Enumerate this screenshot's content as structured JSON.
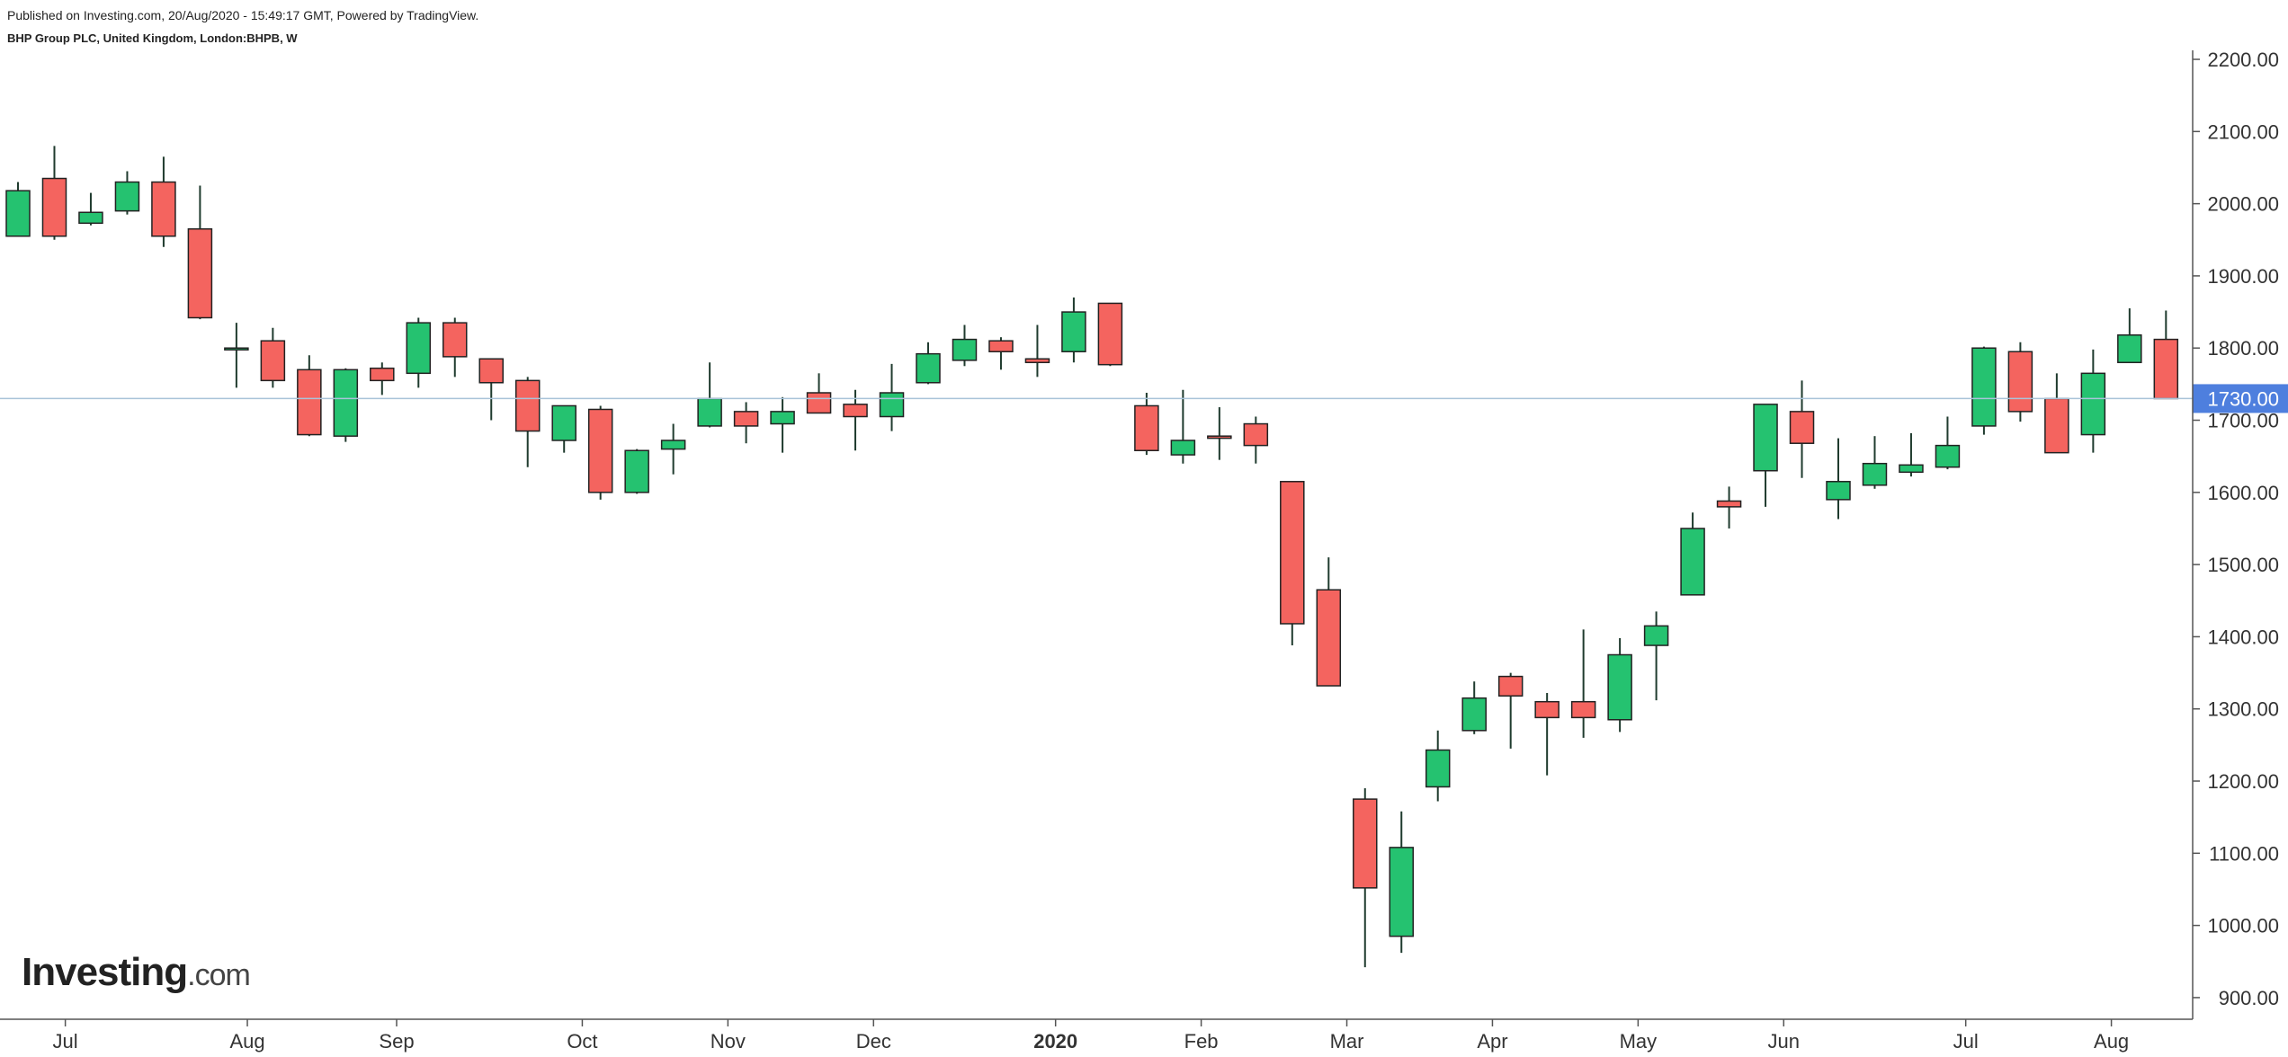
{
  "header": {
    "published": "Published on Investing.com, 20/Aug/2020 - 15:49:17 GMT, Powered by TradingView.",
    "instrument": "BHP Group PLC, United Kingdom, London:BHPB, W"
  },
  "logo": {
    "brand": "Investing",
    "tld": ".com"
  },
  "colors": {
    "up": "#25c270",
    "down": "#f4645f",
    "wick": "#1f3b2e",
    "border": "#222222",
    "price_line": "#a9c3d9",
    "price_label_bg": "#4e7fde",
    "axis": "#555555"
  },
  "chart_data": {
    "type": "candlestick",
    "timeframe": "W",
    "ylim": [
      870,
      2210
    ],
    "y_ticks": [
      "900.00",
      "1000.00",
      "1100.00",
      "1200.00",
      "1300.00",
      "1400.00",
      "1500.00",
      "1600.00",
      "1700.00",
      "1800.00",
      "1900.00",
      "2000.00",
      "2100.00",
      "2200.00"
    ],
    "y_tick_values": [
      900,
      1000,
      1100,
      1200,
      1300,
      1400,
      1500,
      1600,
      1700,
      1800,
      1900,
      2000,
      2100,
      2200
    ],
    "x_ticks": [
      {
        "label": "Jul",
        "index": 1.3
      },
      {
        "label": "Aug",
        "index": 6.3
      },
      {
        "label": "Sep",
        "index": 10.4
      },
      {
        "label": "Oct",
        "index": 15.5
      },
      {
        "label": "Nov",
        "index": 19.5
      },
      {
        "label": "Dec",
        "index": 23.5
      },
      {
        "label": "2020",
        "index": 28.5,
        "bold": true
      },
      {
        "label": "Feb",
        "index": 32.5
      },
      {
        "label": "Mar",
        "index": 36.5
      },
      {
        "label": "Apr",
        "index": 40.5
      },
      {
        "label": "May",
        "index": 44.5
      },
      {
        "label": "Jun",
        "index": 48.5
      },
      {
        "label": "Jul",
        "index": 53.5
      },
      {
        "label": "Aug",
        "index": 57.5
      }
    ],
    "current_price": 1730,
    "current_price_label": "1730.00",
    "candles": [
      {
        "o": 1955,
        "h": 2030,
        "l": 1955,
        "c": 2018
      },
      {
        "o": 2035,
        "h": 2080,
        "l": 1950,
        "c": 1955
      },
      {
        "o": 1973,
        "h": 2015,
        "l": 1970,
        "c": 1988
      },
      {
        "o": 1990,
        "h": 2045,
        "l": 1985,
        "c": 2030
      },
      {
        "o": 2030,
        "h": 2065,
        "l": 1940,
        "c": 1955
      },
      {
        "o": 1965,
        "h": 2025,
        "l": 1840,
        "c": 1842
      },
      {
        "o": 1800,
        "h": 1835,
        "l": 1745,
        "c": 1800
      },
      {
        "o": 1810,
        "h": 1828,
        "l": 1745,
        "c": 1755
      },
      {
        "o": 1770,
        "h": 1790,
        "l": 1678,
        "c": 1680
      },
      {
        "o": 1678,
        "h": 1772,
        "l": 1670,
        "c": 1770
      },
      {
        "o": 1772,
        "h": 1780,
        "l": 1735,
        "c": 1755
      },
      {
        "o": 1765,
        "h": 1842,
        "l": 1745,
        "c": 1835
      },
      {
        "o": 1835,
        "h": 1842,
        "l": 1760,
        "c": 1788
      },
      {
        "o": 1785,
        "h": 1785,
        "l": 1700,
        "c": 1752
      },
      {
        "o": 1755,
        "h": 1760,
        "l": 1635,
        "c": 1685
      },
      {
        "o": 1672,
        "h": 1720,
        "l": 1655,
        "c": 1720
      },
      {
        "o": 1715,
        "h": 1720,
        "l": 1590,
        "c": 1600
      },
      {
        "o": 1600,
        "h": 1660,
        "l": 1598,
        "c": 1658
      },
      {
        "o": 1660,
        "h": 1695,
        "l": 1625,
        "c": 1672
      },
      {
        "o": 1692,
        "h": 1780,
        "l": 1690,
        "c": 1730
      },
      {
        "o": 1712,
        "h": 1725,
        "l": 1668,
        "c": 1692
      },
      {
        "o": 1695,
        "h": 1732,
        "l": 1655,
        "c": 1712
      },
      {
        "o": 1738,
        "h": 1765,
        "l": 1710,
        "c": 1710
      },
      {
        "o": 1722,
        "h": 1742,
        "l": 1658,
        "c": 1705
      },
      {
        "o": 1705,
        "h": 1778,
        "l": 1685,
        "c": 1738
      },
      {
        "o": 1752,
        "h": 1808,
        "l": 1750,
        "c": 1792
      },
      {
        "o": 1783,
        "h": 1832,
        "l": 1775,
        "c": 1812
      },
      {
        "o": 1810,
        "h": 1815,
        "l": 1770,
        "c": 1795
      },
      {
        "o": 1785,
        "h": 1832,
        "l": 1760,
        "c": 1780
      },
      {
        "o": 1795,
        "h": 1870,
        "l": 1780,
        "c": 1850
      },
      {
        "o": 1862,
        "h": 1862,
        "l": 1775,
        "c": 1777
      },
      {
        "o": 1720,
        "h": 1738,
        "l": 1652,
        "c": 1658
      },
      {
        "o": 1652,
        "h": 1742,
        "l": 1640,
        "c": 1672
      },
      {
        "o": 1678,
        "h": 1718,
        "l": 1645,
        "c": 1675
      },
      {
        "o": 1695,
        "h": 1705,
        "l": 1640,
        "c": 1665
      },
      {
        "o": 1615,
        "h": 1615,
        "l": 1388,
        "c": 1418
      },
      {
        "o": 1465,
        "h": 1510,
        "l": 1332,
        "c": 1332
      },
      {
        "o": 1175,
        "h": 1190,
        "l": 942,
        "c": 1052
      },
      {
        "o": 985,
        "h": 1158,
        "l": 962,
        "c": 1108
      },
      {
        "o": 1192,
        "h": 1270,
        "l": 1172,
        "c": 1243
      },
      {
        "o": 1270,
        "h": 1338,
        "l": 1265,
        "c": 1315
      },
      {
        "o": 1345,
        "h": 1350,
        "l": 1245,
        "c": 1318
      },
      {
        "o": 1310,
        "h": 1322,
        "l": 1208,
        "c": 1288
      },
      {
        "o": 1310,
        "h": 1410,
        "l": 1260,
        "c": 1288
      },
      {
        "o": 1285,
        "h": 1398,
        "l": 1268,
        "c": 1375
      },
      {
        "o": 1388,
        "h": 1435,
        "l": 1312,
        "c": 1415
      },
      {
        "o": 1458,
        "h": 1572,
        "l": 1458,
        "c": 1550
      },
      {
        "o": 1588,
        "h": 1608,
        "l": 1550,
        "c": 1580
      },
      {
        "o": 1630,
        "h": 1722,
        "l": 1580,
        "c": 1722
      },
      {
        "o": 1712,
        "h": 1755,
        "l": 1620,
        "c": 1668
      },
      {
        "o": 1590,
        "h": 1675,
        "l": 1563,
        "c": 1615
      },
      {
        "o": 1610,
        "h": 1678,
        "l": 1605,
        "c": 1640
      },
      {
        "o": 1628,
        "h": 1682,
        "l": 1622,
        "c": 1638
      },
      {
        "o": 1635,
        "h": 1705,
        "l": 1632,
        "c": 1665
      },
      {
        "o": 1692,
        "h": 1802,
        "l": 1680,
        "c": 1800
      },
      {
        "o": 1795,
        "h": 1808,
        "l": 1698,
        "c": 1712
      },
      {
        "o": 1730,
        "h": 1765,
        "l": 1655,
        "c": 1655
      },
      {
        "o": 1680,
        "h": 1798,
        "l": 1655,
        "c": 1765
      },
      {
        "o": 1780,
        "h": 1855,
        "l": 1780,
        "c": 1818
      },
      {
        "o": 1812,
        "h": 1852,
        "l": 1730,
        "c": 1730
      }
    ]
  }
}
